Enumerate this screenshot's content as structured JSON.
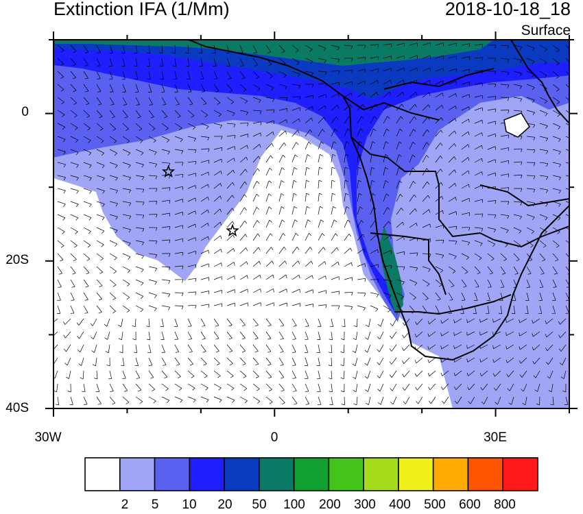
{
  "header": {
    "title": "Extinction IFA (1/Mm)",
    "datetime": "2018-10-18_18",
    "level": "Surface"
  },
  "map": {
    "extent_lon": [
      -30,
      40
    ],
    "extent_lat": [
      -40,
      10
    ],
    "x_ticks": [
      {
        "label": "30W",
        "lon": -30
      },
      {
        "label": "0",
        "lon": 0
      },
      {
        "label": "30E",
        "lon": 30
      }
    ],
    "y_ticks": [
      {
        "label": "0",
        "lat": 0
      },
      {
        "label": "20S",
        "lat": -20
      },
      {
        "label": "40S",
        "lat": -40
      }
    ],
    "markers": [
      {
        "name": "star-marker-1",
        "lon": -14.4,
        "lat": -7.9
      },
      {
        "name": "star-marker-2",
        "lon": -5.7,
        "lat": -15.9
      }
    ],
    "wind_vectors": "wind barbs overlaid on grid"
  },
  "colorbar": {
    "colors": [
      "#ffffff",
      "#a0a6f5",
      "#5a60f0",
      "#1e1eff",
      "#0a3ac0",
      "#0a7a64",
      "#10a030",
      "#44c41a",
      "#a4dc1a",
      "#f0f01a",
      "#ffaa00",
      "#ff5500",
      "#ff1a1a"
    ],
    "labels": [
      "2",
      "5",
      "10",
      "20",
      "50",
      "100",
      "200",
      "300",
      "400",
      "500",
      "600",
      "800"
    ]
  }
}
